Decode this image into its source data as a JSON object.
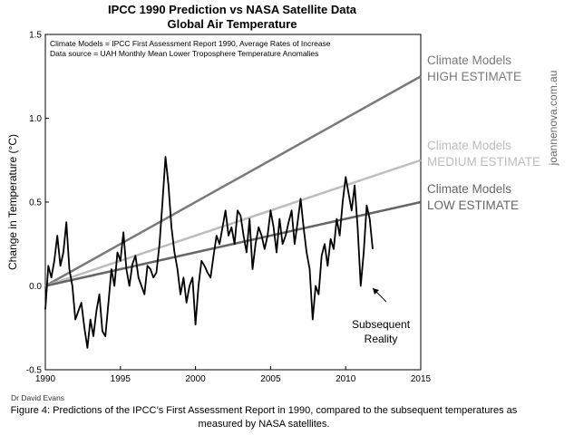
{
  "chart_data": {
    "type": "line",
    "title": "IPCC 1990 Prediction vs NASA Satellite Data",
    "subtitle": "Global Air Temperature",
    "notes": [
      "Climate Models = IPCC First Assessment Report 1990, Average Rates of Increase",
      "Data source = UAH Monthly Mean Lower Troposphere Temperature Anomalies"
    ],
    "xlabel": "",
    "ylabel": "Change in Temperature (°C)",
    "xlim": [
      1990,
      2015
    ],
    "ylim": [
      -0.5,
      1.5
    ],
    "x_ticks": [
      1990,
      1995,
      2000,
      2005,
      2010,
      2015
    ],
    "y_ticks": [
      -0.5,
      0.0,
      0.5,
      1.0,
      1.5
    ],
    "y_tick_labels": [
      "-0.5",
      "0.0",
      "0.5",
      "1.0",
      "1.5"
    ],
    "grid": false,
    "projections": [
      {
        "label_line1": "Climate Models",
        "label_line2": "HIGH ESTIMATE",
        "x": [
          1990,
          2015
        ],
        "y": [
          0.0,
          1.25
        ],
        "color": "#7a7a7a"
      },
      {
        "label_line1": "Climate Models",
        "label_line2": "MEDIUM ESTIMATE",
        "x": [
          1990,
          2015
        ],
        "y": [
          0.0,
          0.75
        ],
        "color": "#bdbdbd"
      },
      {
        "label_line1": "Climate Models",
        "label_line2": "LOW ESTIMATE",
        "x": [
          1990,
          2015
        ],
        "y": [
          0.0,
          0.5
        ],
        "color": "#666666"
      }
    ],
    "observed": {
      "color": "#000000",
      "x": [
        1990.0,
        1990.2,
        1990.4,
        1990.6,
        1990.8,
        1991.0,
        1991.2,
        1991.4,
        1991.6,
        1991.8,
        1992.0,
        1992.2,
        1992.4,
        1992.6,
        1992.8,
        1993.0,
        1993.2,
        1993.4,
        1993.6,
        1993.8,
        1994.0,
        1994.2,
        1994.4,
        1994.6,
        1994.8,
        1995.0,
        1995.2,
        1995.4,
        1995.6,
        1995.8,
        1996.0,
        1996.2,
        1996.4,
        1996.6,
        1996.8,
        1997.0,
        1997.2,
        1997.4,
        1997.6,
        1997.8,
        1998.0,
        1998.2,
        1998.4,
        1998.6,
        1998.8,
        1999.0,
        1999.2,
        1999.4,
        1999.6,
        1999.8,
        2000.0,
        2000.2,
        2000.4,
        2000.6,
        2000.8,
        2001.0,
        2001.2,
        2001.4,
        2001.6,
        2001.8,
        2002.0,
        2002.2,
        2002.4,
        2002.6,
        2002.8,
        2003.0,
        2003.2,
        2003.4,
        2003.6,
        2003.8,
        2004.0,
        2004.2,
        2004.4,
        2004.6,
        2004.8,
        2005.0,
        2005.2,
        2005.4,
        2005.6,
        2005.8,
        2006.0,
        2006.2,
        2006.4,
        2006.6,
        2006.8,
        2007.0,
        2007.2,
        2007.4,
        2007.6,
        2007.8,
        2008.0,
        2008.2,
        2008.4,
        2008.6,
        2008.8,
        2009.0,
        2009.2,
        2009.4,
        2009.6,
        2009.8,
        2010.0,
        2010.2,
        2010.4,
        2010.6,
        2010.8,
        2011.0,
        2011.2,
        2011.4,
        2011.6,
        2011.8
      ],
      "y": [
        -0.14,
        0.12,
        0.05,
        0.15,
        0.3,
        0.12,
        0.2,
        0.38,
        0.1,
        0.0,
        -0.2,
        -0.15,
        -0.1,
        -0.25,
        -0.37,
        -0.2,
        -0.3,
        -0.15,
        -0.05,
        -0.27,
        -0.3,
        -0.1,
        0.1,
        0.0,
        0.2,
        0.15,
        0.32,
        0.1,
        0.0,
        0.13,
        0.18,
        0.05,
        0.0,
        -0.05,
        0.12,
        0.1,
        0.05,
        0.08,
        0.25,
        0.5,
        0.77,
        0.6,
        0.35,
        0.2,
        0.1,
        -0.05,
        0.05,
        -0.1,
        0.0,
        0.05,
        -0.23,
        0.0,
        0.15,
        0.12,
        0.08,
        0.05,
        0.18,
        0.3,
        0.25,
        0.35,
        0.45,
        0.3,
        0.35,
        0.25,
        0.45,
        0.42,
        0.3,
        0.2,
        0.4,
        0.1,
        0.25,
        0.35,
        0.3,
        0.22,
        0.3,
        0.45,
        0.35,
        0.2,
        0.4,
        0.25,
        0.3,
        0.38,
        0.45,
        0.25,
        0.38,
        0.52,
        0.35,
        0.2,
        0.1,
        -0.2,
        0.0,
        -0.05,
        0.18,
        0.25,
        0.12,
        0.28,
        0.22,
        0.4,
        0.3,
        0.5,
        0.65,
        0.55,
        0.45,
        0.6,
        0.35,
        0.0,
        0.2,
        0.48,
        0.4,
        0.22
      ]
    },
    "annotations": [
      {
        "text_line1": "Subsequent",
        "text_line2": "Reality"
      }
    ]
  },
  "credit": "Dr David Evans",
  "watermark": "joannenova.com.au",
  "caption": "Figure 4: Predictions of the IPCC’s First Assessment Report in 1990, compared to the subsequent temperatures as measured by NASA satellites."
}
